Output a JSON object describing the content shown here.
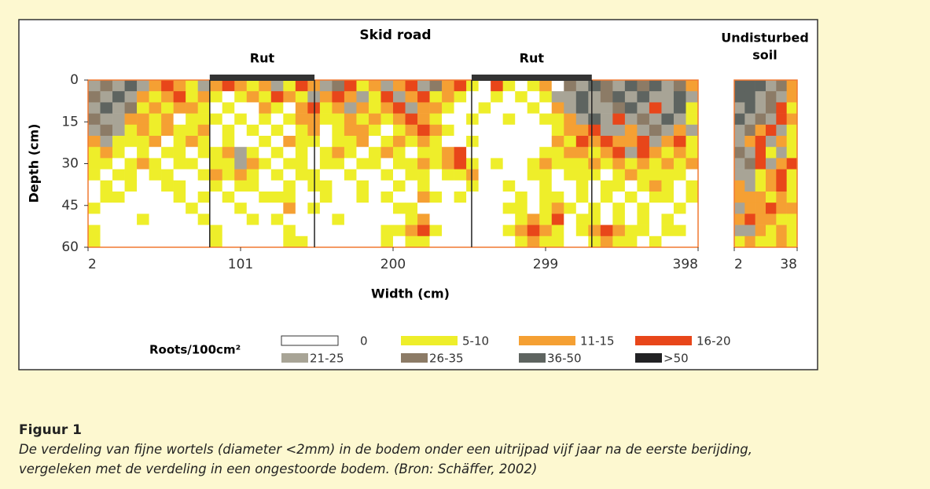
{
  "chart_data": {
    "type": "heatmap",
    "title": "Skid road",
    "xlabel": "Width (cm)",
    "ylabel": "Depth (cm)",
    "legend_title": "Roots/100cm²",
    "legend": [
      {
        "label": "0",
        "color": "#ffffff"
      },
      {
        "label": "5-10",
        "color": "#eeee2a"
      },
      {
        "label": "11-15",
        "color": "#f5a033"
      },
      {
        "label": "16-20",
        "color": "#e8461a"
      },
      {
        "label": "21-25",
        "color": "#a8a496"
      },
      {
        "label": "26-35",
        "color": "#8c7b66"
      },
      {
        "label": "36-50",
        "color": "#5e6460"
      },
      {
        "label": ">50",
        "color": "#222224"
      }
    ],
    "ruts": [
      {
        "label": "Rut",
        "x": [
          81,
          149
        ]
      },
      {
        "label": "Rut",
        "x": [
          251,
          329
        ]
      }
    ],
    "panels": [
      {
        "xlim": [
          2,
          398
        ],
        "xticks": [
          2,
          101,
          200,
          299,
          398
        ],
        "ylim": [
          0,
          60
        ],
        "yticks": [
          0,
          15,
          30,
          45,
          60
        ],
        "cells": [
          [
            4,
            5,
            4,
            6,
            4,
            2,
            3,
            2,
            1,
            4,
            2,
            3,
            2,
            1,
            2,
            4,
            1,
            3,
            2,
            4,
            5,
            3,
            1,
            2,
            4,
            2,
            3,
            4,
            5,
            2,
            3,
            1,
            0,
            3,
            1,
            0,
            1,
            2,
            0,
            5,
            4,
            6,
            5,
            4,
            6,
            5,
            6,
            4,
            5,
            2
          ],
          [
            5,
            4,
            6,
            4,
            2,
            1,
            2,
            3,
            1,
            2,
            1,
            0,
            1,
            2,
            1,
            3,
            2,
            1,
            4,
            2,
            3,
            2,
            4,
            1,
            3,
            4,
            2,
            3,
            1,
            2,
            1,
            0,
            0,
            1,
            0,
            1,
            0,
            1,
            4,
            4,
            6,
            4,
            5,
            6,
            4,
            6,
            4,
            4,
            6,
            4
          ],
          [
            4,
            6,
            4,
            5,
            1,
            2,
            1,
            2,
            2,
            1,
            0,
            1,
            0,
            0,
            2,
            1,
            0,
            2,
            3,
            1,
            2,
            4,
            2,
            1,
            2,
            3,
            4,
            2,
            2,
            1,
            0,
            0,
            1,
            0,
            0,
            0,
            1,
            0,
            2,
            4,
            6,
            4,
            4,
            5,
            6,
            4,
            3,
            4,
            6,
            1
          ],
          [
            5,
            4,
            4,
            2,
            2,
            1,
            2,
            0,
            1,
            1,
            1,
            0,
            1,
            0,
            1,
            0,
            1,
            2,
            2,
            1,
            1,
            2,
            1,
            2,
            1,
            2,
            3,
            2,
            1,
            0,
            0,
            1,
            0,
            0,
            1,
            0,
            0,
            1,
            1,
            2,
            4,
            6,
            4,
            3,
            4,
            5,
            4,
            6,
            4,
            1
          ],
          [
            4,
            5,
            4,
            1,
            2,
            1,
            2,
            1,
            1,
            2,
            0,
            1,
            0,
            1,
            0,
            1,
            0,
            1,
            2,
            0,
            1,
            2,
            2,
            1,
            0,
            1,
            2,
            3,
            2,
            1,
            0,
            0,
            0,
            0,
            0,
            0,
            0,
            0,
            1,
            2,
            2,
            3,
            4,
            4,
            2,
            4,
            5,
            4,
            2,
            4
          ],
          [
            2,
            4,
            1,
            1,
            1,
            2,
            0,
            1,
            2,
            1,
            0,
            1,
            0,
            0,
            1,
            0,
            2,
            1,
            1,
            0,
            1,
            1,
            2,
            0,
            1,
            2,
            1,
            2,
            1,
            0,
            0,
            1,
            0,
            0,
            0,
            0,
            0,
            0,
            2,
            1,
            3,
            2,
            3,
            2,
            2,
            3,
            4,
            2,
            3,
            1
          ],
          [
            1,
            2,
            1,
            0,
            1,
            0,
            1,
            1,
            0,
            1,
            1,
            2,
            4,
            1,
            0,
            1,
            0,
            1,
            0,
            1,
            2,
            1,
            0,
            1,
            2,
            1,
            0,
            1,
            1,
            2,
            3,
            0,
            0,
            0,
            0,
            0,
            0,
            1,
            1,
            2,
            2,
            1,
            2,
            3,
            4,
            3,
            2,
            1,
            2,
            1
          ],
          [
            1,
            1,
            0,
            1,
            2,
            1,
            0,
            1,
            1,
            0,
            1,
            1,
            4,
            2,
            1,
            0,
            1,
            1,
            0,
            1,
            1,
            0,
            1,
            1,
            0,
            1,
            1,
            2,
            1,
            2,
            3,
            1,
            0,
            1,
            0,
            0,
            1,
            2,
            1,
            1,
            1,
            2,
            1,
            2,
            1,
            2,
            1,
            2,
            1,
            2
          ],
          [
            1,
            0,
            1,
            1,
            0,
            1,
            1,
            0,
            0,
            1,
            2,
            1,
            2,
            1,
            0,
            1,
            0,
            1,
            1,
            0,
            0,
            1,
            0,
            0,
            1,
            0,
            1,
            1,
            0,
            1,
            1,
            2,
            0,
            0,
            0,
            0,
            1,
            1,
            0,
            1,
            1,
            1,
            0,
            1,
            2,
            1,
            1,
            1,
            1,
            0
          ],
          [
            0,
            1,
            0,
            1,
            0,
            0,
            1,
            1,
            0,
            0,
            1,
            0,
            1,
            1,
            0,
            0,
            1,
            0,
            1,
            1,
            0,
            0,
            1,
            0,
            0,
            1,
            0,
            1,
            0,
            0,
            0,
            1,
            0,
            0,
            1,
            0,
            0,
            1,
            0,
            0,
            1,
            0,
            1,
            1,
            0,
            1,
            2,
            1,
            0,
            1
          ],
          [
            0,
            1,
            1,
            0,
            0,
            0,
            0,
            1,
            0,
            1,
            0,
            1,
            0,
            0,
            1,
            1,
            1,
            0,
            0,
            1,
            0,
            0,
            1,
            0,
            1,
            0,
            0,
            2,
            1,
            0,
            1,
            0,
            0,
            0,
            0,
            1,
            0,
            1,
            1,
            0,
            1,
            0,
            1,
            0,
            1,
            0,
            1,
            1,
            0,
            1
          ],
          [
            1,
            0,
            0,
            0,
            0,
            0,
            0,
            0,
            1,
            0,
            0,
            0,
            1,
            0,
            0,
            0,
            2,
            0,
            1,
            0,
            0,
            0,
            0,
            0,
            0,
            1,
            1,
            0,
            0,
            0,
            0,
            0,
            0,
            0,
            1,
            1,
            0,
            1,
            2,
            1,
            0,
            1,
            0,
            1,
            0,
            1,
            0,
            0,
            1,
            0
          ],
          [
            0,
            0,
            0,
            0,
            1,
            0,
            0,
            0,
            0,
            1,
            0,
            0,
            0,
            1,
            0,
            1,
            0,
            0,
            0,
            0,
            1,
            0,
            0,
            0,
            0,
            0,
            1,
            2,
            0,
            0,
            0,
            0,
            0,
            0,
            0,
            1,
            2,
            1,
            3,
            0,
            1,
            1,
            0,
            1,
            0,
            1,
            0,
            1,
            0,
            0
          ],
          [
            1,
            0,
            0,
            0,
            0,
            0,
            0,
            0,
            0,
            0,
            1,
            0,
            0,
            0,
            0,
            0,
            1,
            0,
            0,
            0,
            0,
            0,
            0,
            0,
            1,
            1,
            2,
            3,
            1,
            0,
            0,
            0,
            0,
            0,
            1,
            2,
            3,
            2,
            1,
            0,
            1,
            2,
            3,
            2,
            1,
            1,
            0,
            1,
            1,
            0
          ],
          [
            1,
            0,
            0,
            0,
            0,
            0,
            0,
            0,
            0,
            0,
            1,
            0,
            0,
            0,
            0,
            0,
            1,
            1,
            0,
            0,
            0,
            0,
            0,
            0,
            1,
            0,
            1,
            1,
            0,
            0,
            0,
            0,
            0,
            0,
            0,
            1,
            2,
            1,
            1,
            0,
            0,
            1,
            2,
            1,
            1,
            0,
            1,
            0,
            0,
            0
          ]
        ]
      },
      {
        "title": [
          "Undisturbed",
          "soil"
        ],
        "xlim": [
          2,
          38
        ],
        "xticks": [
          2,
          38
        ],
        "ylim": [
          0,
          60
        ],
        "cells": [
          [
            6,
            6,
            6,
            4,
            5,
            2
          ],
          [
            6,
            6,
            4,
            5,
            4,
            2
          ],
          [
            4,
            6,
            4,
            5,
            3,
            1
          ],
          [
            6,
            4,
            5,
            4,
            3,
            2
          ],
          [
            4,
            5,
            2,
            3,
            4,
            1
          ],
          [
            4,
            2,
            3,
            4,
            2,
            1
          ],
          [
            5,
            4,
            3,
            1,
            4,
            1
          ],
          [
            4,
            5,
            3,
            4,
            2,
            3
          ],
          [
            4,
            4,
            1,
            2,
            3,
            1
          ],
          [
            2,
            4,
            1,
            2,
            3,
            1
          ],
          [
            2,
            2,
            2,
            1,
            2,
            1
          ],
          [
            4,
            2,
            2,
            3,
            2,
            2
          ],
          [
            2,
            3,
            2,
            2,
            1,
            1
          ],
          [
            4,
            4,
            2,
            1,
            2,
            1
          ],
          [
            1,
            2,
            1,
            1,
            2,
            1
          ]
        ]
      }
    ]
  },
  "caption": {
    "title": "Figuur 1",
    "lines": [
      "De verdeling van fijne wortels (diameter <2mm) in de bodem onder een uitrijpad vijf jaar na de eerste berijding,",
      "vergeleken met de verdeling in een ongestoorde bodem. (Bron: Schäffer, 2002)"
    ]
  }
}
